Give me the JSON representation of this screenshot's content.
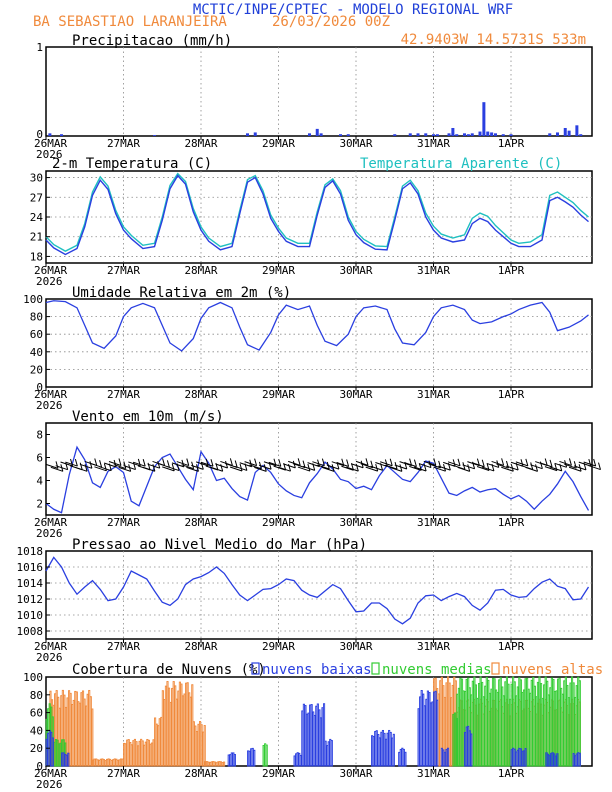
{
  "header": {
    "title": "MCTIC/INPE/CPTEC - MODELO REGIONAL WRF",
    "station": "BA SEBASTIAO LARANJEIRA",
    "run": "26/03/2026 00Z",
    "coords": "42.9403W 14.5731S 533m"
  },
  "colors": {
    "title": "#1f3fd8",
    "orange": "#f08a3c",
    "blue": "#2a3fe0",
    "cyan": "#1fc0c0",
    "green": "#33cc33",
    "black": "#000000"
  },
  "time_axis": {
    "tick_labels": [
      "26MAR",
      "27MAR",
      "28MAR",
      "29MAR",
      "30MAR",
      "31MAR",
      "1APR"
    ],
    "year_label": "2026",
    "days": 7.0
  },
  "chart_data": [
    {
      "type": "bar",
      "name": "precipitation",
      "title": "Precipitacao (mm/h)",
      "ylim": [
        0,
        1
      ],
      "yticks": [
        "1",
        "0"
      ],
      "series_x_days": [
        0.05,
        0.2,
        1.4,
        2.6,
        2.7,
        3.4,
        3.5,
        3.55,
        3.8,
        3.9,
        4.5,
        4.7,
        4.8,
        4.9,
        5.0,
        5.05,
        5.2,
        5.25,
        5.3,
        5.4,
        5.45,
        5.5,
        5.6,
        5.65,
        5.7,
        5.75,
        5.8,
        5.9,
        6.0,
        6.5,
        6.6,
        6.7,
        6.75,
        6.85,
        6.9
      ],
      "values": [
        0.03,
        0.02,
        0.01,
        0.03,
        0.04,
        0.03,
        0.08,
        0.03,
        0.02,
        0.02,
        0.02,
        0.03,
        0.03,
        0.03,
        0.02,
        0.02,
        0.03,
        0.09,
        0.02,
        0.03,
        0.02,
        0.03,
        0.05,
        0.38,
        0.05,
        0.04,
        0.03,
        0.02,
        0.02,
        0.03,
        0.04,
        0.09,
        0.06,
        0.12,
        0.02
      ]
    },
    {
      "type": "line",
      "name": "temperature",
      "title": "2-m Temperatura (C)",
      "legend": "Temperatura Aparente (C)",
      "ylim": [
        17,
        31
      ],
      "yticks": [
        30,
        27,
        24,
        21,
        18
      ],
      "x_days": [
        0,
        0.1,
        0.25,
        0.4,
        0.5,
        0.6,
        0.7,
        0.8,
        0.9,
        1.0,
        1.1,
        1.25,
        1.4,
        1.5,
        1.6,
        1.7,
        1.8,
        1.9,
        2.0,
        2.1,
        2.25,
        2.4,
        2.5,
        2.6,
        2.7,
        2.8,
        2.9,
        3.0,
        3.1,
        3.25,
        3.4,
        3.5,
        3.6,
        3.7,
        3.8,
        3.9,
        4.0,
        4.1,
        4.25,
        4.4,
        4.5,
        4.6,
        4.7,
        4.8,
        4.9,
        5.0,
        5.1,
        5.25,
        5.4,
        5.5,
        5.6,
        5.7,
        5.8,
        5.9,
        6.0,
        6.1,
        6.25,
        6.4,
        6.5,
        6.6,
        6.7,
        6.8,
        6.9,
        7.0
      ],
      "series": [
        {
          "name": "2-m Temperatura",
          "values": [
            20.5,
            19.3,
            18.3,
            19.2,
            22.5,
            27.3,
            29.6,
            28.2,
            24.5,
            22.0,
            20.7,
            19.2,
            19.5,
            23.5,
            28.3,
            30.3,
            29.0,
            24.8,
            22.0,
            20.3,
            19.0,
            19.5,
            24.5,
            29.3,
            30.0,
            27.5,
            23.8,
            21.8,
            20.3,
            19.5,
            19.5,
            24.3,
            28.5,
            29.5,
            27.5,
            23.5,
            21.3,
            20.1,
            19.1,
            19.0,
            23.5,
            28.3,
            29.2,
            27.5,
            24.0,
            22.0,
            20.8,
            20.2,
            20.5,
            23.0,
            23.8,
            23.3,
            22.0,
            21.0,
            20.0,
            19.5,
            19.5,
            20.5,
            26.5,
            27.0,
            26.3,
            25.5,
            24.3,
            23.3
          ]
        },
        {
          "name": "Temperatura Aparente",
          "values": [
            21.0,
            19.8,
            18.8,
            19.7,
            23.0,
            27.8,
            30.1,
            28.7,
            25.0,
            22.5,
            21.2,
            19.7,
            20.0,
            24.0,
            28.8,
            30.6,
            29.4,
            25.3,
            22.5,
            20.8,
            19.5,
            20.0,
            25.0,
            29.7,
            30.3,
            28.0,
            24.3,
            22.3,
            20.8,
            20.0,
            20.0,
            24.8,
            28.9,
            29.8,
            28.0,
            24.0,
            21.8,
            20.6,
            19.6,
            19.5,
            24.0,
            28.7,
            29.6,
            28.0,
            24.6,
            22.6,
            21.4,
            20.8,
            21.3,
            23.8,
            24.6,
            24.1,
            22.7,
            21.6,
            20.5,
            20.0,
            20.2,
            21.3,
            27.3,
            27.8,
            27.0,
            26.2,
            25.0,
            24.0
          ]
        }
      ]
    },
    {
      "type": "line",
      "name": "humidity",
      "title": "Umidade Relativa em 2m (%)",
      "ylim": [
        0,
        100
      ],
      "yticks": [
        100,
        80,
        60,
        40,
        20,
        0
      ],
      "x_days": [
        0,
        0.1,
        0.25,
        0.4,
        0.5,
        0.6,
        0.75,
        0.9,
        1.0,
        1.1,
        1.25,
        1.4,
        1.5,
        1.6,
        1.75,
        1.9,
        2.0,
        2.1,
        2.25,
        2.4,
        2.5,
        2.6,
        2.75,
        2.9,
        3.0,
        3.1,
        3.25,
        3.4,
        3.5,
        3.6,
        3.75,
        3.9,
        4.0,
        4.1,
        4.25,
        4.4,
        4.5,
        4.6,
        4.75,
        4.9,
        5.0,
        5.1,
        5.25,
        5.4,
        5.5,
        5.6,
        5.75,
        5.9,
        6.0,
        6.1,
        6.25,
        6.4,
        6.5,
        6.6,
        6.75,
        6.9,
        7.0
      ],
      "values": [
        96,
        98,
        97,
        90,
        70,
        50,
        44,
        58,
        80,
        90,
        95,
        90,
        70,
        50,
        41,
        55,
        78,
        90,
        96,
        90,
        68,
        48,
        42,
        62,
        82,
        93,
        88,
        92,
        70,
        52,
        47,
        60,
        80,
        90,
        92,
        88,
        66,
        50,
        48,
        62,
        80,
        90,
        93,
        88,
        76,
        72,
        74,
        80,
        83,
        88,
        93,
        96,
        85,
        64,
        68,
        75,
        82
      ]
    },
    {
      "type": "line",
      "name": "wind",
      "title": "Vento em 10m (m/s)",
      "ylim": [
        1,
        9
      ],
      "yticks": [
        8,
        6,
        4,
        2
      ],
      "barb_level": 5.4,
      "x_days": [
        0,
        0.1,
        0.2,
        0.3,
        0.4,
        0.5,
        0.6,
        0.7,
        0.8,
        0.9,
        1.0,
        1.1,
        1.2,
        1.3,
        1.4,
        1.5,
        1.6,
        1.7,
        1.8,
        1.9,
        2.0,
        2.1,
        2.2,
        2.3,
        2.4,
        2.5,
        2.6,
        2.7,
        2.8,
        2.9,
        3.0,
        3.1,
        3.2,
        3.3,
        3.4,
        3.5,
        3.6,
        3.7,
        3.8,
        3.9,
        4.0,
        4.1,
        4.2,
        4.3,
        4.4,
        4.5,
        4.6,
        4.7,
        4.8,
        4.9,
        5.0,
        5.1,
        5.2,
        5.3,
        5.4,
        5.5,
        5.6,
        5.7,
        5.8,
        5.9,
        6.0,
        6.1,
        6.2,
        6.3,
        6.4,
        6.5,
        6.6,
        6.7,
        6.8,
        6.9,
        7.0
      ],
      "values": [
        2.0,
        1.5,
        1.2,
        4.5,
        6.9,
        5.8,
        3.8,
        3.4,
        4.8,
        5.2,
        4.7,
        2.2,
        1.8,
        3.5,
        5.2,
        6.0,
        6.3,
        5.2,
        4.1,
        3.2,
        6.5,
        5.5,
        4.0,
        4.2,
        3.3,
        2.6,
        2.3,
        4.7,
        5.3,
        4.7,
        3.7,
        3.1,
        2.7,
        2.5,
        3.8,
        4.6,
        5.6,
        5.0,
        4.1,
        3.9,
        3.3,
        3.5,
        3.2,
        4.4,
        5.3,
        4.7,
        4.1,
        3.9,
        4.7,
        5.7,
        5.5,
        4.2,
        2.9,
        2.7,
        3.1,
        3.4,
        3.0,
        3.2,
        3.3,
        2.8,
        2.4,
        2.7,
        2.2,
        1.5,
        2.2,
        2.8,
        3.7,
        4.8,
        3.9,
        2.6,
        1.4
      ]
    },
    {
      "type": "line",
      "name": "pressure",
      "title": "Pressao ao Nivel Medio do Mar (hPa)",
      "ylim": [
        1007,
        1018
      ],
      "yticks": [
        1018,
        1016,
        1014,
        1012,
        1010,
        1008
      ],
      "x_days": [
        0,
        0.1,
        0.2,
        0.3,
        0.4,
        0.5,
        0.6,
        0.7,
        0.8,
        0.9,
        1.0,
        1.1,
        1.2,
        1.3,
        1.4,
        1.5,
        1.6,
        1.7,
        1.8,
        1.9,
        2.0,
        2.1,
        2.2,
        2.3,
        2.4,
        2.5,
        2.6,
        2.7,
        2.8,
        2.9,
        3.0,
        3.1,
        3.2,
        3.3,
        3.4,
        3.5,
        3.6,
        3.7,
        3.8,
        3.9,
        4.0,
        4.1,
        4.2,
        4.3,
        4.4,
        4.5,
        4.6,
        4.7,
        4.8,
        4.9,
        5.0,
        5.1,
        5.2,
        5.3,
        5.4,
        5.5,
        5.6,
        5.7,
        5.8,
        5.9,
        6.0,
        6.1,
        6.2,
        6.3,
        6.4,
        6.5,
        6.6,
        6.7,
        6.8,
        6.9,
        7.0
      ],
      "values": [
        1015.5,
        1017.2,
        1016.0,
        1014.0,
        1012.6,
        1013.5,
        1014.3,
        1013.2,
        1011.8,
        1012.0,
        1013.5,
        1015.5,
        1015.0,
        1014.5,
        1013.0,
        1011.6,
        1011.2,
        1012.0,
        1013.8,
        1014.5,
        1014.8,
        1015.3,
        1016.0,
        1015.2,
        1013.8,
        1012.5,
        1011.8,
        1012.5,
        1013.2,
        1013.3,
        1013.8,
        1014.5,
        1014.3,
        1013.1,
        1012.5,
        1012.2,
        1013.0,
        1013.8,
        1013.3,
        1011.8,
        1010.4,
        1010.5,
        1011.5,
        1011.5,
        1010.8,
        1009.5,
        1008.9,
        1009.6,
        1011.5,
        1012.4,
        1012.5,
        1011.8,
        1012.3,
        1012.7,
        1012.3,
        1011.2,
        1010.6,
        1011.5,
        1013.1,
        1013.2,
        1012.5,
        1012.2,
        1012.3,
        1013.3,
        1014.1,
        1014.5,
        1013.6,
        1013.3,
        1011.9,
        1012.0,
        1013.5
      ]
    },
    {
      "type": "bar",
      "name": "clouds",
      "title": "Cobertura de Nuvens (%)",
      "legend": [
        "nuvens baixas",
        "nuvens medias",
        "nuvens altas"
      ],
      "ylim": [
        0,
        100
      ],
      "yticks": [
        100,
        80,
        60,
        40,
        20,
        0
      ],
      "segments": {
        "altas": [
          [
            0.0,
            0.05,
            20
          ],
          [
            0.05,
            0.6,
            85
          ],
          [
            0.6,
            1.0,
            8
          ],
          [
            1.0,
            1.4,
            30
          ],
          [
            1.4,
            1.5,
            55
          ],
          [
            1.5,
            1.9,
            95
          ],
          [
            1.9,
            2.05,
            50
          ],
          [
            2.05,
            2.3,
            5
          ],
          [
            5.0,
            5.3,
            100
          ],
          [
            5.3,
            6.9,
            75
          ]
        ],
        "medias": [
          [
            0.0,
            0.1,
            70
          ],
          [
            0.1,
            0.25,
            30
          ],
          [
            2.8,
            2.85,
            25
          ],
          [
            5.25,
            5.3,
            60
          ],
          [
            5.3,
            6.9,
            100
          ]
        ],
        "baixas": [
          [
            0.0,
            0.1,
            40
          ],
          [
            0.2,
            0.3,
            15
          ],
          [
            2.35,
            2.45,
            15
          ],
          [
            2.6,
            2.7,
            20
          ],
          [
            3.2,
            3.3,
            15
          ],
          [
            3.3,
            3.6,
            70
          ],
          [
            3.6,
            3.7,
            30
          ],
          [
            4.2,
            4.5,
            40
          ],
          [
            4.55,
            4.65,
            20
          ],
          [
            4.8,
            5.05,
            85
          ],
          [
            5.1,
            5.2,
            20
          ],
          [
            5.4,
            5.5,
            45
          ],
          [
            6.0,
            6.2,
            20
          ],
          [
            6.45,
            6.6,
            15
          ],
          [
            6.8,
            6.9,
            15
          ]
        ]
      }
    }
  ]
}
